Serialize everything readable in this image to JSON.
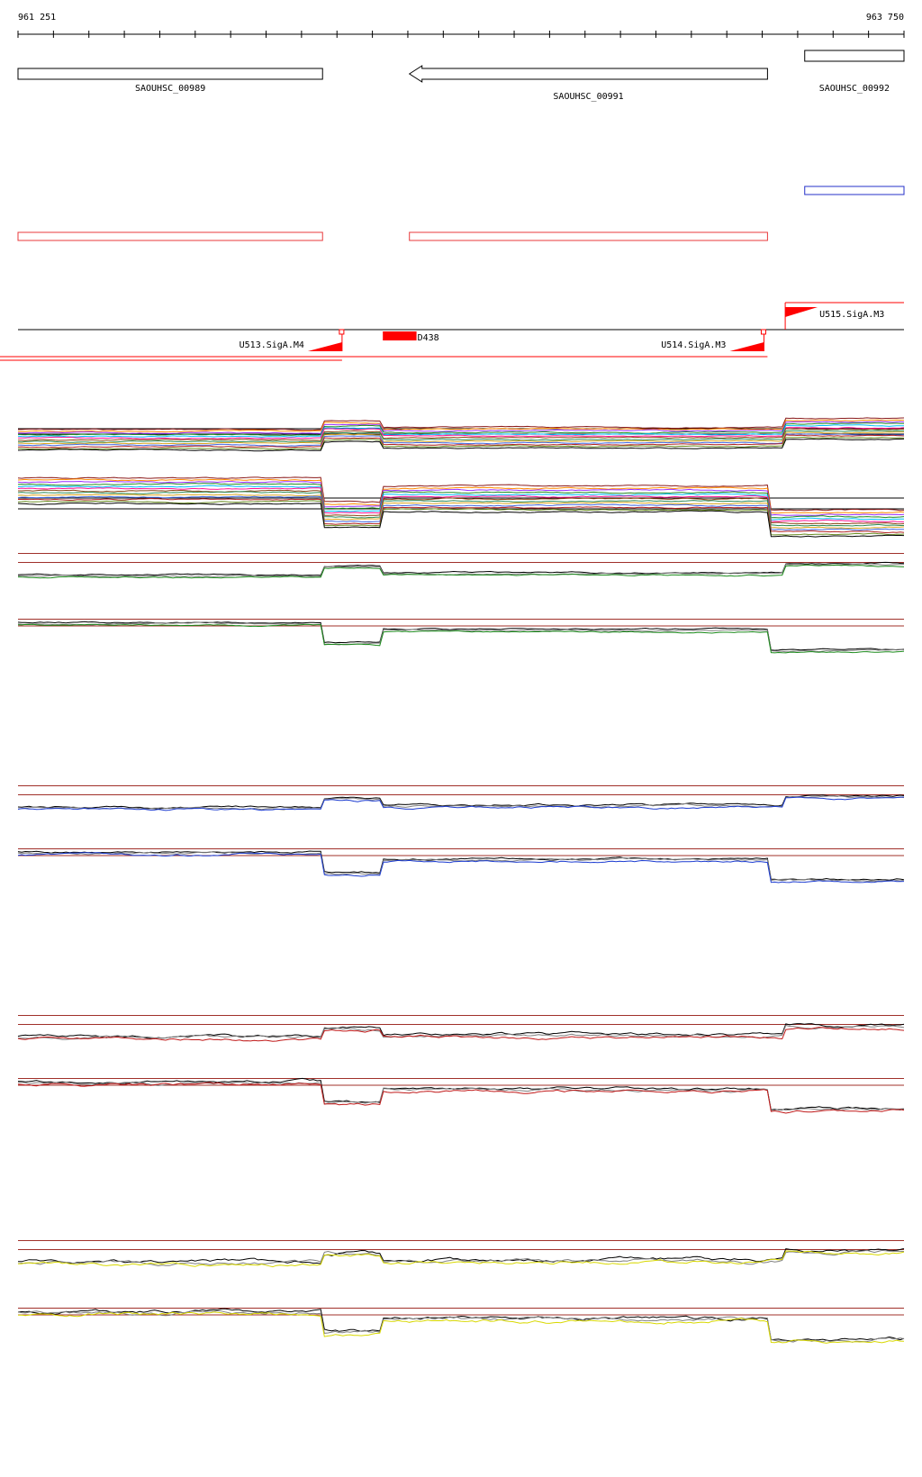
{
  "ruler": {
    "start_label": "961 251",
    "end_label": "963 750",
    "start": 961251,
    "end": 963750
  },
  "genes": [
    {
      "id": "SAOUHSC_00989",
      "label": "SAOUHSC_00989",
      "start": 961251,
      "end": 962110,
      "strand": "+"
    },
    {
      "id": "SAOUHSC_00991",
      "label": "SAOUHSC_00991",
      "start": 962355,
      "end": 963365,
      "strand": "-"
    },
    {
      "id": "SAOUHSC_00992",
      "label": "SAOUHSC_00992",
      "start": 963470,
      "end": 963750,
      "strand": "+"
    }
  ],
  "annotation_boxes": [
    {
      "name": "red-annotation-1",
      "start": 961251,
      "end": 962110,
      "color": "#e8393b"
    },
    {
      "name": "red-annotation-2",
      "start": 962355,
      "end": 963365,
      "color": "#e8393b"
    },
    {
      "name": "blue-annotation-1",
      "start": 963470,
      "end": 963750,
      "color": "#2430c8"
    }
  ],
  "features": [
    {
      "id": "U513.SigA.M4",
      "label": "U513.SigA.M4",
      "position": 962165,
      "strand": "-"
    },
    {
      "id": "U514.SigA.M3",
      "label": "U514.SigA.M3",
      "position": 963355,
      "strand": "-"
    },
    {
      "id": "U515.SigA.M3",
      "label": "U515.SigA.M3",
      "position": 963415,
      "strand": "+"
    },
    {
      "id": "D438",
      "label": "D438",
      "start": 962280,
      "end": 962375
    }
  ],
  "colors": {
    "gene_outline": "#000000",
    "annotation_red": "#e8393b",
    "annotation_blue": "#2430c8",
    "feature_red": "#ff0000",
    "threshold_line": "#a0302a",
    "track_green": "#1a8a1a",
    "track_blue": "#1a3ad0",
    "track_red": "#c01818",
    "track_yellow": "#d8d800",
    "track_black": "#000000",
    "track_grey": "#808080"
  },
  "chart_data": {
    "type": "line",
    "x_range": [
      961251,
      963750
    ],
    "multi_track_colors": [
      "#8b1a1a",
      "#ff8c00",
      "#9b30ff",
      "#228b22",
      "#00bfff",
      "#ff1493",
      "#8b4513",
      "#2e8b57",
      "#daa520",
      "#4169e1",
      "#b22222",
      "#6b8e23",
      "#000000"
    ],
    "segments_plus": [
      [
        961251,
        962110,
        0.55
      ],
      [
        962110,
        962280,
        0.35
      ],
      [
        962280,
        963415,
        0.5
      ],
      [
        963415,
        963750,
        0.3
      ]
    ],
    "segments_minus": [
      [
        961251,
        962110,
        0.25
      ],
      [
        962110,
        962280,
        0.7
      ],
      [
        962280,
        963365,
        0.4
      ],
      [
        963365,
        963750,
        0.85
      ]
    ],
    "condition_tracks": [
      {
        "name": "green",
        "color": "#1a8a1a"
      },
      {
        "name": "blue",
        "color": "#1a3ad0"
      },
      {
        "name": "red",
        "color": "#c01818"
      },
      {
        "name": "yellow",
        "color": "#d8d800"
      }
    ]
  }
}
